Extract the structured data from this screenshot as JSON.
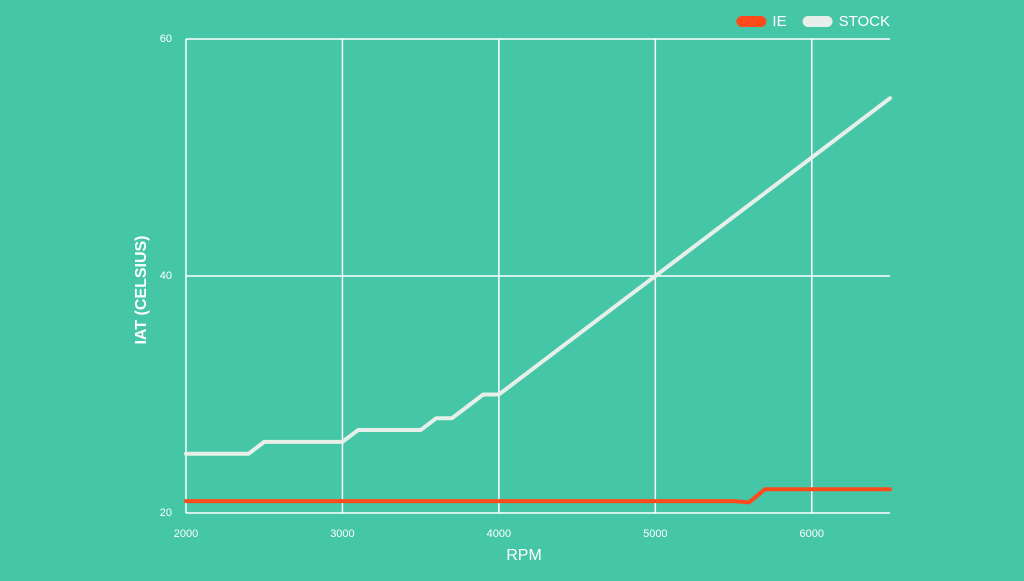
{
  "chart_data": {
    "type": "line",
    "x_label": "RPM",
    "y_label": "IAT (CELSIUS)",
    "x": [
      2000,
      2300,
      2400,
      2500,
      2900,
      3000,
      3100,
      3400,
      3500,
      3600,
      3700,
      3800,
      3900,
      4000,
      5000,
      5500,
      5600,
      5700,
      6000,
      6500
    ],
    "series": [
      {
        "name": "IE",
        "color": "#ff4a1c",
        "values": [
          21,
          21,
          21,
          21,
          21,
          21,
          21,
          21,
          21,
          21,
          21,
          21,
          21,
          21,
          21,
          21,
          20.9,
          22,
          22,
          22
        ]
      },
      {
        "name": "STOCK",
        "color": "#e6efe9",
        "values": [
          25,
          25,
          25,
          26,
          26,
          26,
          27,
          27,
          27,
          28,
          28,
          29,
          30,
          30,
          40,
          45,
          46,
          47,
          50,
          55
        ]
      }
    ],
    "xlim": [
      2000,
      6500
    ],
    "xticks": [
      2000,
      3000,
      4000,
      5000,
      6000
    ],
    "ylim": [
      20,
      60
    ],
    "yticks": [
      20,
      40,
      60
    ],
    "grid": true,
    "legend": "top-right"
  }
}
